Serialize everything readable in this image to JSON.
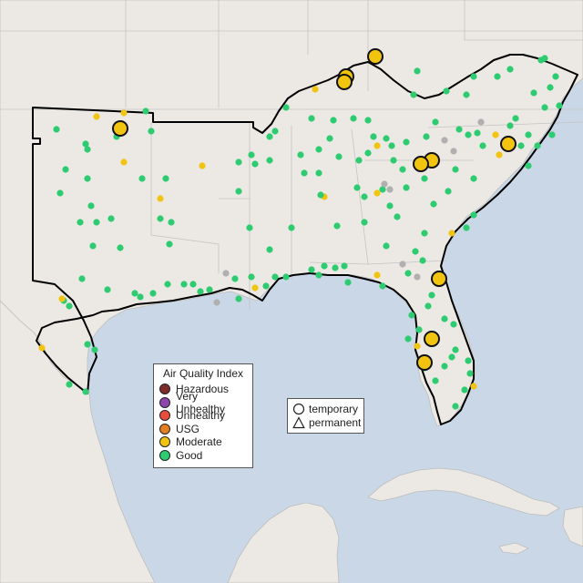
{
  "legend_aqi": {
    "title": "Air Quality Index",
    "items": [
      {
        "label": "Hazardous",
        "color": "#7e2a2a"
      },
      {
        "label": "Very Unhealthy",
        "color": "#8e44ad"
      },
      {
        "label": "Unhealthy",
        "color": "#e74c3c"
      },
      {
        "label": "USG",
        "color": "#e67e22"
      },
      {
        "label": "Moderate",
        "color": "#f1c40f"
      },
      {
        "label": "Good",
        "color": "#2ecc71"
      }
    ]
  },
  "legend_monitor": {
    "items": [
      {
        "label": "temporary",
        "icon": "circle-icon"
      },
      {
        "label": "permanent",
        "icon": "triangle-icon"
      }
    ]
  },
  "colors": {
    "water": "#c9d7e6",
    "land": "#ece9e4",
    "border": "#000000",
    "no_data": "#b0b0b0"
  }
}
